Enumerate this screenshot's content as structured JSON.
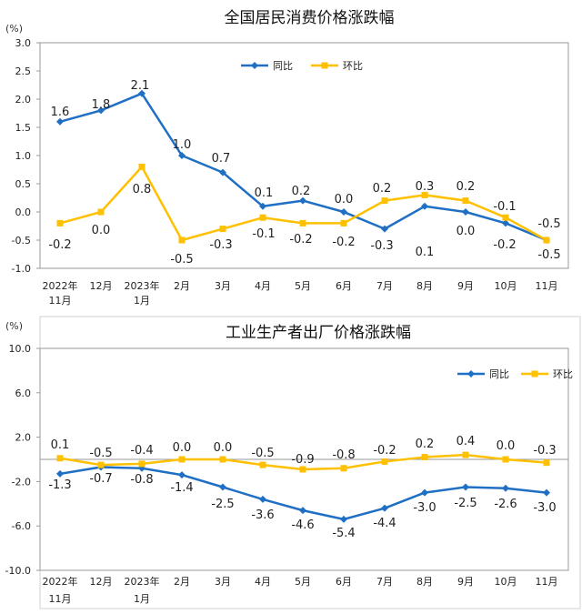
{
  "chart_data": [
    {
      "type": "line",
      "title": "全国居民消费价格涨跌幅",
      "unit": "(%)",
      "ylim": [
        -1.0,
        3.0
      ],
      "yticks": [
        "3.0",
        "2.5",
        "2.0",
        "1.5",
        "1.0",
        "0.5",
        "0.0",
        "-0.5",
        "-1.0"
      ],
      "categories": [
        [
          "2022年",
          "11月"
        ],
        [
          "12月"
        ],
        [
          "2023年",
          "1月"
        ],
        [
          "2月"
        ],
        [
          "3月"
        ],
        [
          "4月"
        ],
        [
          "5月"
        ],
        [
          "6月"
        ],
        [
          "7月"
        ],
        [
          "8月"
        ],
        [
          "9月"
        ],
        [
          "10月"
        ],
        [
          "11月"
        ]
      ],
      "legend_position": "top-right",
      "series": [
        {
          "name": "同比",
          "color": "#1f6fc5",
          "marker": "diamond",
          "values": [
            1.6,
            1.8,
            2.1,
            1.0,
            0.7,
            0.1,
            0.2,
            0.0,
            -0.3,
            0.1,
            0.0,
            -0.2,
            -0.5
          ],
          "labels": [
            "1.6",
            "1.8",
            "2.1",
            "1.0",
            "0.7",
            "0.1",
            "0.2",
            "0.0",
            "-0.3",
            "0.1",
            "0.0",
            "-0.2",
            "-0.5"
          ]
        },
        {
          "name": "环比",
          "color": "#ffc000",
          "marker": "square",
          "values": [
            -0.2,
            0.0,
            0.8,
            -0.5,
            -0.3,
            -0.1,
            -0.2,
            -0.2,
            0.2,
            0.3,
            0.2,
            -0.1,
            -0.5
          ],
          "labels": [
            "-0.2",
            "0.0",
            "0.8",
            "-0.5",
            "-0.3",
            "-0.1",
            "-0.2",
            "-0.2",
            "0.2",
            "0.3",
            "0.2",
            "-0.1",
            "-0.5"
          ]
        }
      ]
    },
    {
      "type": "line",
      "title": "工业生产者出厂价格涨跌幅",
      "unit": "(%)",
      "ylim": [
        -10.0,
        10.0
      ],
      "yticks": [
        "10.0",
        "6.0",
        "2.0",
        "-2.0",
        "-6.0",
        "-10.0"
      ],
      "categories": [
        [
          "2022年",
          "11月"
        ],
        [
          "12月"
        ],
        [
          "2023年",
          "1月"
        ],
        [
          "2月"
        ],
        [
          "3月"
        ],
        [
          "4月"
        ],
        [
          "5月"
        ],
        [
          "6月"
        ],
        [
          "7月"
        ],
        [
          "8月"
        ],
        [
          "9月"
        ],
        [
          "10月"
        ],
        [
          "11月"
        ]
      ],
      "legend_position": "top-right",
      "series": [
        {
          "name": "同比",
          "color": "#1f6fc5",
          "marker": "diamond",
          "values": [
            -1.3,
            -0.7,
            -0.8,
            -1.4,
            -2.5,
            -3.6,
            -4.6,
            -5.4,
            -4.4,
            -3.0,
            -2.5,
            -2.6,
            -3.0
          ],
          "labels": [
            "-1.3",
            "-0.7",
            "-0.8",
            "-1.4",
            "-2.5",
            "-3.6",
            "-4.6",
            "-5.4",
            "-4.4",
            "-3.0",
            "-2.5",
            "-2.6",
            "-3.0"
          ]
        },
        {
          "name": "环比",
          "color": "#ffc000",
          "marker": "square",
          "values": [
            0.1,
            -0.5,
            -0.4,
            0.0,
            0.0,
            -0.5,
            -0.9,
            -0.8,
            -0.2,
            0.2,
            0.4,
            0.0,
            -0.3
          ],
          "labels": [
            "0.1",
            "-0.5",
            "-0.4",
            "0.0",
            "0.0",
            "-0.5",
            "-0.9",
            "-0.8",
            "-0.2",
            "0.2",
            "0.4",
            "0.0",
            "-0.3"
          ]
        }
      ]
    }
  ]
}
